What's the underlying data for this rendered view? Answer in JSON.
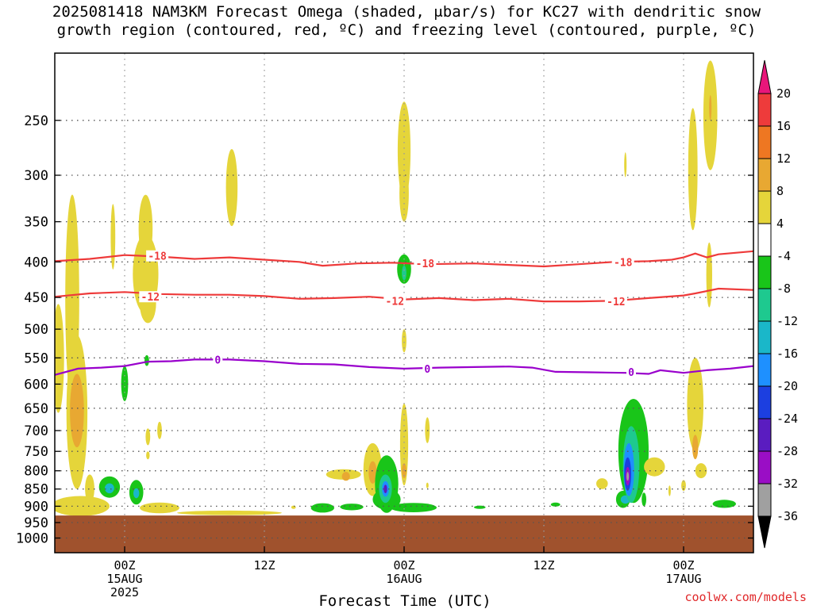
{
  "title": {
    "line1": "2025081418 NAM3KM Forecast Omega (shaded, μbar/s) for KC27 with dendritic snow",
    "line2": "growth region (contoured, red, ºC) and freezing level (contoured, purple, ºC)"
  },
  "credit": "coolwx.com/models",
  "colors": {
    "dgz_contour": "#ee3a3a",
    "freezing_contour": "#9900cc",
    "ground": "#a0522d",
    "grid": "#555555"
  },
  "chart_data": {
    "type": "heatmap",
    "title": "2025081418 NAM3KM Forecast Omega (shaded, μbar/s) for KC27 with dendritic snow growth region (contoured, red, ºC) and freezing level (contoured, purple, ºC)",
    "xlabel": "Forecast Time (UTC)",
    "ylabel": "",
    "y_scale": "log-pressure",
    "ylim": [
      1050,
      200
    ],
    "xlim_hours": [
      -6,
      54
    ],
    "y_ticks": [
      250,
      300,
      350,
      400,
      450,
      500,
      550,
      600,
      650,
      700,
      750,
      800,
      850,
      900,
      950,
      1000
    ],
    "x_ticks": [
      {
        "hour": 0,
        "lines": [
          "00Z",
          "15AUG",
          "2025"
        ]
      },
      {
        "hour": 12,
        "lines": [
          "12Z"
        ]
      },
      {
        "hour": 24,
        "lines": [
          "00Z",
          "16AUG"
        ]
      },
      {
        "hour": 36,
        "lines": [
          "12Z"
        ]
      },
      {
        "hour": 48,
        "lines": [
          "00Z",
          "17AUG"
        ]
      }
    ],
    "grid": true,
    "colorbar": {
      "placement": "right",
      "labels": [
        "20",
        "16",
        "12",
        "8",
        "4",
        "-4",
        "-8",
        "-12",
        "-16",
        "-20",
        "-24",
        "-28",
        "-32",
        "-36"
      ],
      "bins": [
        {
          "lo": 16,
          "hi": 20,
          "color": "#ee3b3b"
        },
        {
          "lo": 12,
          "hi": 16,
          "color": "#ee7722"
        },
        {
          "lo": 8,
          "hi": 12,
          "color": "#e8a832"
        },
        {
          "lo": 4,
          "hi": 8,
          "color": "#e5d53a"
        },
        {
          "lo": -4,
          "hi": 4,
          "color": "#ffffff"
        },
        {
          "lo": -8,
          "hi": -4,
          "color": "#19c519"
        },
        {
          "lo": -12,
          "hi": -8,
          "color": "#1ec98f"
        },
        {
          "lo": -16,
          "hi": -12,
          "color": "#1ab7c9"
        },
        {
          "lo": -20,
          "hi": -16,
          "color": "#1e90ff"
        },
        {
          "lo": -24,
          "hi": -20,
          "color": "#1c3fe0"
        },
        {
          "lo": -28,
          "hi": -24,
          "color": "#5a1cc0"
        },
        {
          "lo": -32,
          "hi": -28,
          "color": "#9a0ec5"
        },
        {
          "lo": -36,
          "hi": -32,
          "color": "#a0a0a0"
        }
      ],
      "over_color": "#e8167a",
      "under_color": "#000000"
    },
    "ground_pressure": 928,
    "omega_features": [
      {
        "t": -5.7,
        "p": 560,
        "wt": 0.5,
        "hp": 100,
        "v": 5
      },
      {
        "t": -4.5,
        "p": 480,
        "wt": 0.6,
        "hp": 160,
        "v": 6
      },
      {
        "t": -4.1,
        "p": 680,
        "wt": 0.9,
        "hp": 170,
        "v": 7
      },
      {
        "t": -4.1,
        "p": 660,
        "wt": 0.6,
        "hp": 80,
        "v": 10
      },
      {
        "t": -3.8,
        "p": 900,
        "wt": 2.5,
        "hp": 30,
        "v": 6
      },
      {
        "t": -3.0,
        "p": 850,
        "wt": 0.4,
        "hp": 40,
        "v": 5
      },
      {
        "t": -1.0,
        "p": 370,
        "wt": 0.2,
        "hp": 40,
        "v": 5
      },
      {
        "t": -1.3,
        "p": 845,
        "wt": 0.9,
        "hp": 30,
        "v": -6
      },
      {
        "t": -1.3,
        "p": 848,
        "wt": 0.4,
        "hp": 14,
        "v": -14
      },
      {
        "t": 0.0,
        "p": 600,
        "wt": 0.3,
        "hp": 35,
        "v": -6
      },
      {
        "t": 1.0,
        "p": 860,
        "wt": 0.6,
        "hp": 35,
        "v": -6
      },
      {
        "t": 1.0,
        "p": 862,
        "wt": 0.25,
        "hp": 14,
        "v": -13
      },
      {
        "t": 1.8,
        "p": 420,
        "wt": 1.1,
        "hp": 55,
        "v": 6
      },
      {
        "t": 1.8,
        "p": 360,
        "wt": 0.6,
        "hp": 40,
        "v": 5
      },
      {
        "t": 2.0,
        "p": 460,
        "wt": 0.7,
        "hp": 30,
        "v": 6
      },
      {
        "t": 1.9,
        "p": 555,
        "wt": 0.2,
        "hp": 10,
        "v": -6
      },
      {
        "t": 3.0,
        "p": 905,
        "wt": 1.7,
        "hp": 16,
        "v": 5
      },
      {
        "t": 2.0,
        "p": 715,
        "wt": 0.2,
        "hp": 20,
        "v": 5
      },
      {
        "t": 2.0,
        "p": 760,
        "wt": 0.15,
        "hp": 10,
        "v": 5
      },
      {
        "t": 3.0,
        "p": 700,
        "wt": 0.2,
        "hp": 20,
        "v": 5
      },
      {
        "t": 9.0,
        "p": 920,
        "wt": 4.5,
        "hp": 7,
        "v": 5
      },
      {
        "t": 9.2,
        "p": 315,
        "wt": 0.5,
        "hp": 40,
        "v": 5
      },
      {
        "t": 14.5,
        "p": 903,
        "wt": 0.2,
        "hp": 5,
        "v": 5
      },
      {
        "t": 17.0,
        "p": 905,
        "wt": 1.0,
        "hp": 14,
        "v": -6
      },
      {
        "t": 19.5,
        "p": 902,
        "wt": 1.0,
        "hp": 10,
        "v": -6
      },
      {
        "t": 18.8,
        "p": 810,
        "wt": 1.5,
        "hp": 14,
        "v": 5
      },
      {
        "t": 19.0,
        "p": 815,
        "wt": 0.35,
        "hp": 12,
        "v": 8
      },
      {
        "t": 21.3,
        "p": 800,
        "wt": 0.8,
        "hp": 70,
        "v": 5
      },
      {
        "t": 21.3,
        "p": 805,
        "wt": 0.35,
        "hp": 30,
        "v": 9
      },
      {
        "t": 22.5,
        "p": 840,
        "wt": 1.0,
        "hp": 80,
        "v": -6
      },
      {
        "t": 22.5,
        "p": 880,
        "wt": 1.2,
        "hp": 30,
        "v": -6
      },
      {
        "t": 22.4,
        "p": 850,
        "wt": 0.55,
        "hp": 40,
        "v": -10
      },
      {
        "t": 22.4,
        "p": 850,
        "wt": 0.3,
        "hp": 22,
        "v": -20
      },
      {
        "t": 22.4,
        "p": 850,
        "wt": 0.15,
        "hp": 12,
        "v": -26
      },
      {
        "t": 24.8,
        "p": 904,
        "wt": 2.0,
        "hp": 14,
        "v": -6
      },
      {
        "t": 24.0,
        "p": 280,
        "wt": 0.55,
        "hp": 45,
        "v": 5
      },
      {
        "t": 24.0,
        "p": 320,
        "wt": 0.4,
        "hp": 30,
        "v": 5
      },
      {
        "t": 24.0,
        "p": 410,
        "wt": 0.6,
        "hp": 20,
        "v": -7
      },
      {
        "t": 24.0,
        "p": 415,
        "wt": 0.2,
        "hp": 10,
        "v": -11
      },
      {
        "t": 24.0,
        "p": 520,
        "wt": 0.2,
        "hp": 20,
        "v": 5
      },
      {
        "t": 24.0,
        "p": 740,
        "wt": 0.35,
        "hp": 100,
        "v": 5
      },
      {
        "t": 24.0,
        "p": 800,
        "wt": 0.2,
        "hp": 20,
        "v": 9
      },
      {
        "t": 26.0,
        "p": 700,
        "wt": 0.2,
        "hp": 30,
        "v": 5
      },
      {
        "t": 26.0,
        "p": 840,
        "wt": 0.1,
        "hp": 8,
        "v": 5
      },
      {
        "t": 30.5,
        "p": 903,
        "wt": 0.5,
        "hp": 5,
        "v": -6
      },
      {
        "t": 37.0,
        "p": 895,
        "wt": 0.4,
        "hp": 6,
        "v": -6
      },
      {
        "t": 41.0,
        "p": 835,
        "wt": 0.5,
        "hp": 15,
        "v": 5
      },
      {
        "t": 43.0,
        "p": 290,
        "wt": 0.1,
        "hp": 12,
        "v": 5
      },
      {
        "t": 43.7,
        "p": 760,
        "wt": 1.3,
        "hp": 130,
        "v": -6
      },
      {
        "t": 42.8,
        "p": 880,
        "wt": 0.6,
        "hp": 25,
        "v": -6
      },
      {
        "t": 43.0,
        "p": 880,
        "wt": 0.4,
        "hp": 12,
        "v": -13
      },
      {
        "t": 43.5,
        "p": 790,
        "wt": 0.7,
        "hp": 100,
        "v": -11
      },
      {
        "t": 43.3,
        "p": 800,
        "wt": 0.45,
        "hp": 70,
        "v": -17
      },
      {
        "t": 43.2,
        "p": 810,
        "wt": 0.3,
        "hp": 45,
        "v": -24
      },
      {
        "t": 43.2,
        "p": 815,
        "wt": 0.2,
        "hp": 25,
        "v": -30
      },
      {
        "t": 43.2,
        "p": 815,
        "wt": 0.1,
        "hp": 12,
        "v": -36
      },
      {
        "t": 44.6,
        "p": 880,
        "wt": 0.2,
        "hp": 20,
        "v": -7
      },
      {
        "t": 45.5,
        "p": 790,
        "wt": 0.9,
        "hp": 25,
        "v": 5
      },
      {
        "t": 46.8,
        "p": 855,
        "wt": 0.1,
        "hp": 15,
        "v": 5
      },
      {
        "t": 48.8,
        "p": 300,
        "wt": 0.4,
        "hp": 60,
        "v": 5
      },
      {
        "t": 49.0,
        "p": 650,
        "wt": 0.7,
        "hp": 100,
        "v": 5
      },
      {
        "t": 49.0,
        "p": 740,
        "wt": 0.25,
        "hp": 30,
        "v": 9
      },
      {
        "t": 48.0,
        "p": 840,
        "wt": 0.2,
        "hp": 15,
        "v": 5
      },
      {
        "t": 50.3,
        "p": 250,
        "wt": 0.6,
        "hp": 45,
        "v": 5
      },
      {
        "t": 50.3,
        "p": 240,
        "wt": 0.1,
        "hp": 10,
        "v": 8
      },
      {
        "t": 50.2,
        "p": 420,
        "wt": 0.25,
        "hp": 45,
        "v": 5
      },
      {
        "t": 49.5,
        "p": 800,
        "wt": 0.5,
        "hp": 20,
        "v": 5
      },
      {
        "t": 51.5,
        "p": 893,
        "wt": 1.0,
        "hp": 12,
        "v": -6
      }
    ],
    "contours": [
      {
        "name": "dgz-18",
        "label": "-18",
        "color_key": "dgz_contour",
        "label_at": [
          [
            2.8,
            392
          ],
          [
            25.8,
            402
          ],
          [
            42.8,
            400
          ]
        ],
        "points": [
          [
            -6,
            399
          ],
          [
            -3,
            396
          ],
          [
            0,
            391
          ],
          [
            3,
            393
          ],
          [
            6,
            396
          ],
          [
            9,
            394
          ],
          [
            12,
            397
          ],
          [
            15,
            400
          ],
          [
            17,
            405
          ],
          [
            20,
            402
          ],
          [
            23,
            401
          ],
          [
            26,
            403
          ],
          [
            30,
            402
          ],
          [
            33,
            404
          ],
          [
            36,
            406
          ],
          [
            39,
            403
          ],
          [
            42,
            400
          ],
          [
            45,
            399
          ],
          [
            47,
            397
          ],
          [
            48,
            394
          ],
          [
            49,
            389
          ],
          [
            50,
            394
          ],
          [
            51,
            390
          ],
          [
            54,
            386
          ]
        ]
      },
      {
        "name": "dgz-12",
        "label": "-12",
        "color_key": "dgz_contour",
        "label_at": [
          [
            2.2,
            449
          ],
          [
            23.2,
            455
          ],
          [
            42.2,
            456
          ]
        ],
        "points": [
          [
            -6,
            449
          ],
          [
            -3,
            444
          ],
          [
            0,
            442
          ],
          [
            3,
            445
          ],
          [
            6,
            446
          ],
          [
            9,
            446
          ],
          [
            12,
            448
          ],
          [
            15,
            452
          ],
          [
            18,
            451
          ],
          [
            21,
            449
          ],
          [
            24,
            453
          ],
          [
            27,
            451
          ],
          [
            30,
            454
          ],
          [
            33,
            452
          ],
          [
            36,
            456
          ],
          [
            39,
            456
          ],
          [
            42,
            455
          ],
          [
            45,
            451
          ],
          [
            48,
            447
          ],
          [
            49,
            444
          ],
          [
            51,
            437
          ],
          [
            54,
            439
          ]
        ]
      },
      {
        "name": "freezing-0",
        "label": "0",
        "color_key": "freezing_contour",
        "label_at": [
          [
            8,
            553
          ],
          [
            26,
            570
          ],
          [
            43.5,
            576
          ]
        ],
        "points": [
          [
            -6,
            582
          ],
          [
            -4,
            570
          ],
          [
            -2,
            568
          ],
          [
            0,
            565
          ],
          [
            2,
            557
          ],
          [
            4,
            556
          ],
          [
            6,
            553
          ],
          [
            9,
            553
          ],
          [
            12,
            556
          ],
          [
            15,
            561
          ],
          [
            18,
            562
          ],
          [
            21,
            567
          ],
          [
            24,
            570
          ],
          [
            27,
            568
          ],
          [
            30,
            567
          ],
          [
            33,
            566
          ],
          [
            35,
            568
          ],
          [
            37,
            576
          ],
          [
            40,
            577
          ],
          [
            43,
            578
          ],
          [
            45,
            580
          ],
          [
            46,
            573
          ],
          [
            48,
            578
          ],
          [
            50,
            573
          ],
          [
            52,
            570
          ],
          [
            54,
            565
          ]
        ]
      }
    ]
  }
}
